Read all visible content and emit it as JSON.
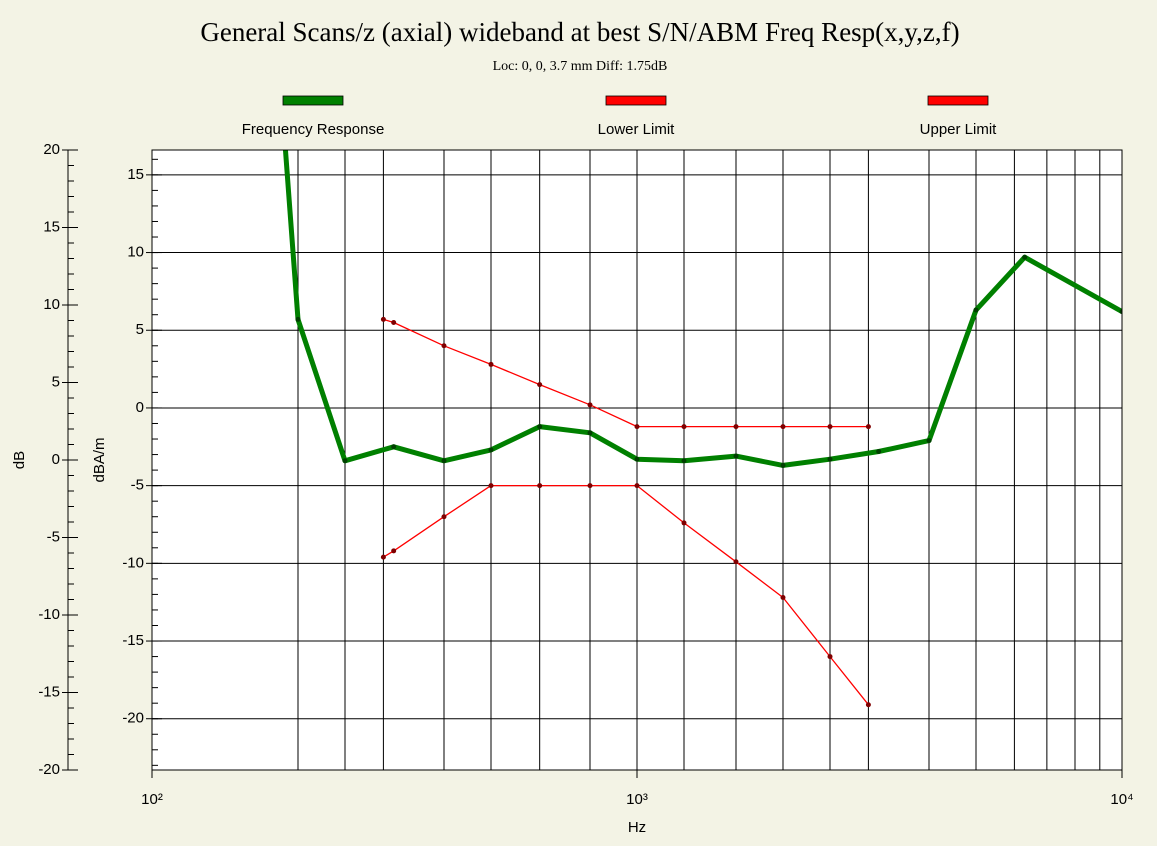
{
  "chart_data": {
    "type": "line",
    "title": "General Scans/z (axial) wideband at best S/N/ABM Freq Resp(x,y,z,f)",
    "subtitle": "Loc: 0, 0, 3.7 mm Diff: 1.75dB",
    "xlabel": "Hz",
    "ylabel": "dB",
    "y2label": "dBA/m",
    "xlog": true,
    "xlim": [
      100,
      10000
    ],
    "xticks": [
      {
        "value": 100,
        "label": "10²"
      },
      {
        "value": 1000,
        "label": "10³"
      },
      {
        "value": 10000,
        "label": "10⁴"
      }
    ],
    "xgrid": [
      200,
      250,
      300,
      400,
      500,
      630,
      800,
      1000,
      1250,
      1600,
      2000,
      2500,
      3000,
      4000,
      5000,
      6000,
      7000,
      8000,
      9000
    ],
    "ylim": [
      -20,
      20
    ],
    "yticks": [
      -20,
      -15,
      -10,
      -5,
      0,
      5,
      10,
      15,
      20
    ],
    "y2lim": [
      -23.3,
      16.6
    ],
    "y2ticks": [
      -20,
      -15,
      -10,
      -5,
      0,
      5,
      10,
      15
    ],
    "grid": true,
    "legend": "top",
    "series": [
      {
        "name": "Frequency Response",
        "color": "#008000",
        "axis": "y2",
        "x": [
          180,
          200,
          250,
          315,
          400,
          500,
          630,
          800,
          1000,
          1250,
          1600,
          2000,
          2500,
          3150,
          4000,
          5000,
          6300,
          10000
        ],
        "values": [
          25,
          5.7,
          -3.4,
          -2.5,
          -3.4,
          -2.7,
          -1.2,
          -1.6,
          -3.3,
          -3.4,
          -3.1,
          -3.7,
          -3.3,
          -2.8,
          -2.1,
          6.3,
          9.7,
          6.2
        ]
      },
      {
        "name": "Lower Limit",
        "color": "#ff0000",
        "axis": "y2",
        "x": [
          300,
          315,
          400,
          500,
          630,
          800,
          1000,
          1250,
          1600,
          2000,
          2500,
          3000
        ],
        "values": [
          -9.6,
          -9.2,
          -7.0,
          -5.0,
          -5.0,
          -5.0,
          -5.0,
          -7.4,
          -9.9,
          -12.2,
          -16.0,
          -19.1
        ]
      },
      {
        "name": "Upper Limit",
        "color": "#ff0000",
        "axis": "y2",
        "x": [
          300,
          315,
          400,
          500,
          630,
          800,
          1000,
          1250,
          1600,
          2000,
          2500,
          3000
        ],
        "values": [
          5.7,
          5.5,
          4.0,
          2.8,
          1.5,
          0.2,
          -1.2,
          -1.2,
          -1.2,
          -1.2,
          -1.2,
          -1.2
        ]
      }
    ]
  }
}
